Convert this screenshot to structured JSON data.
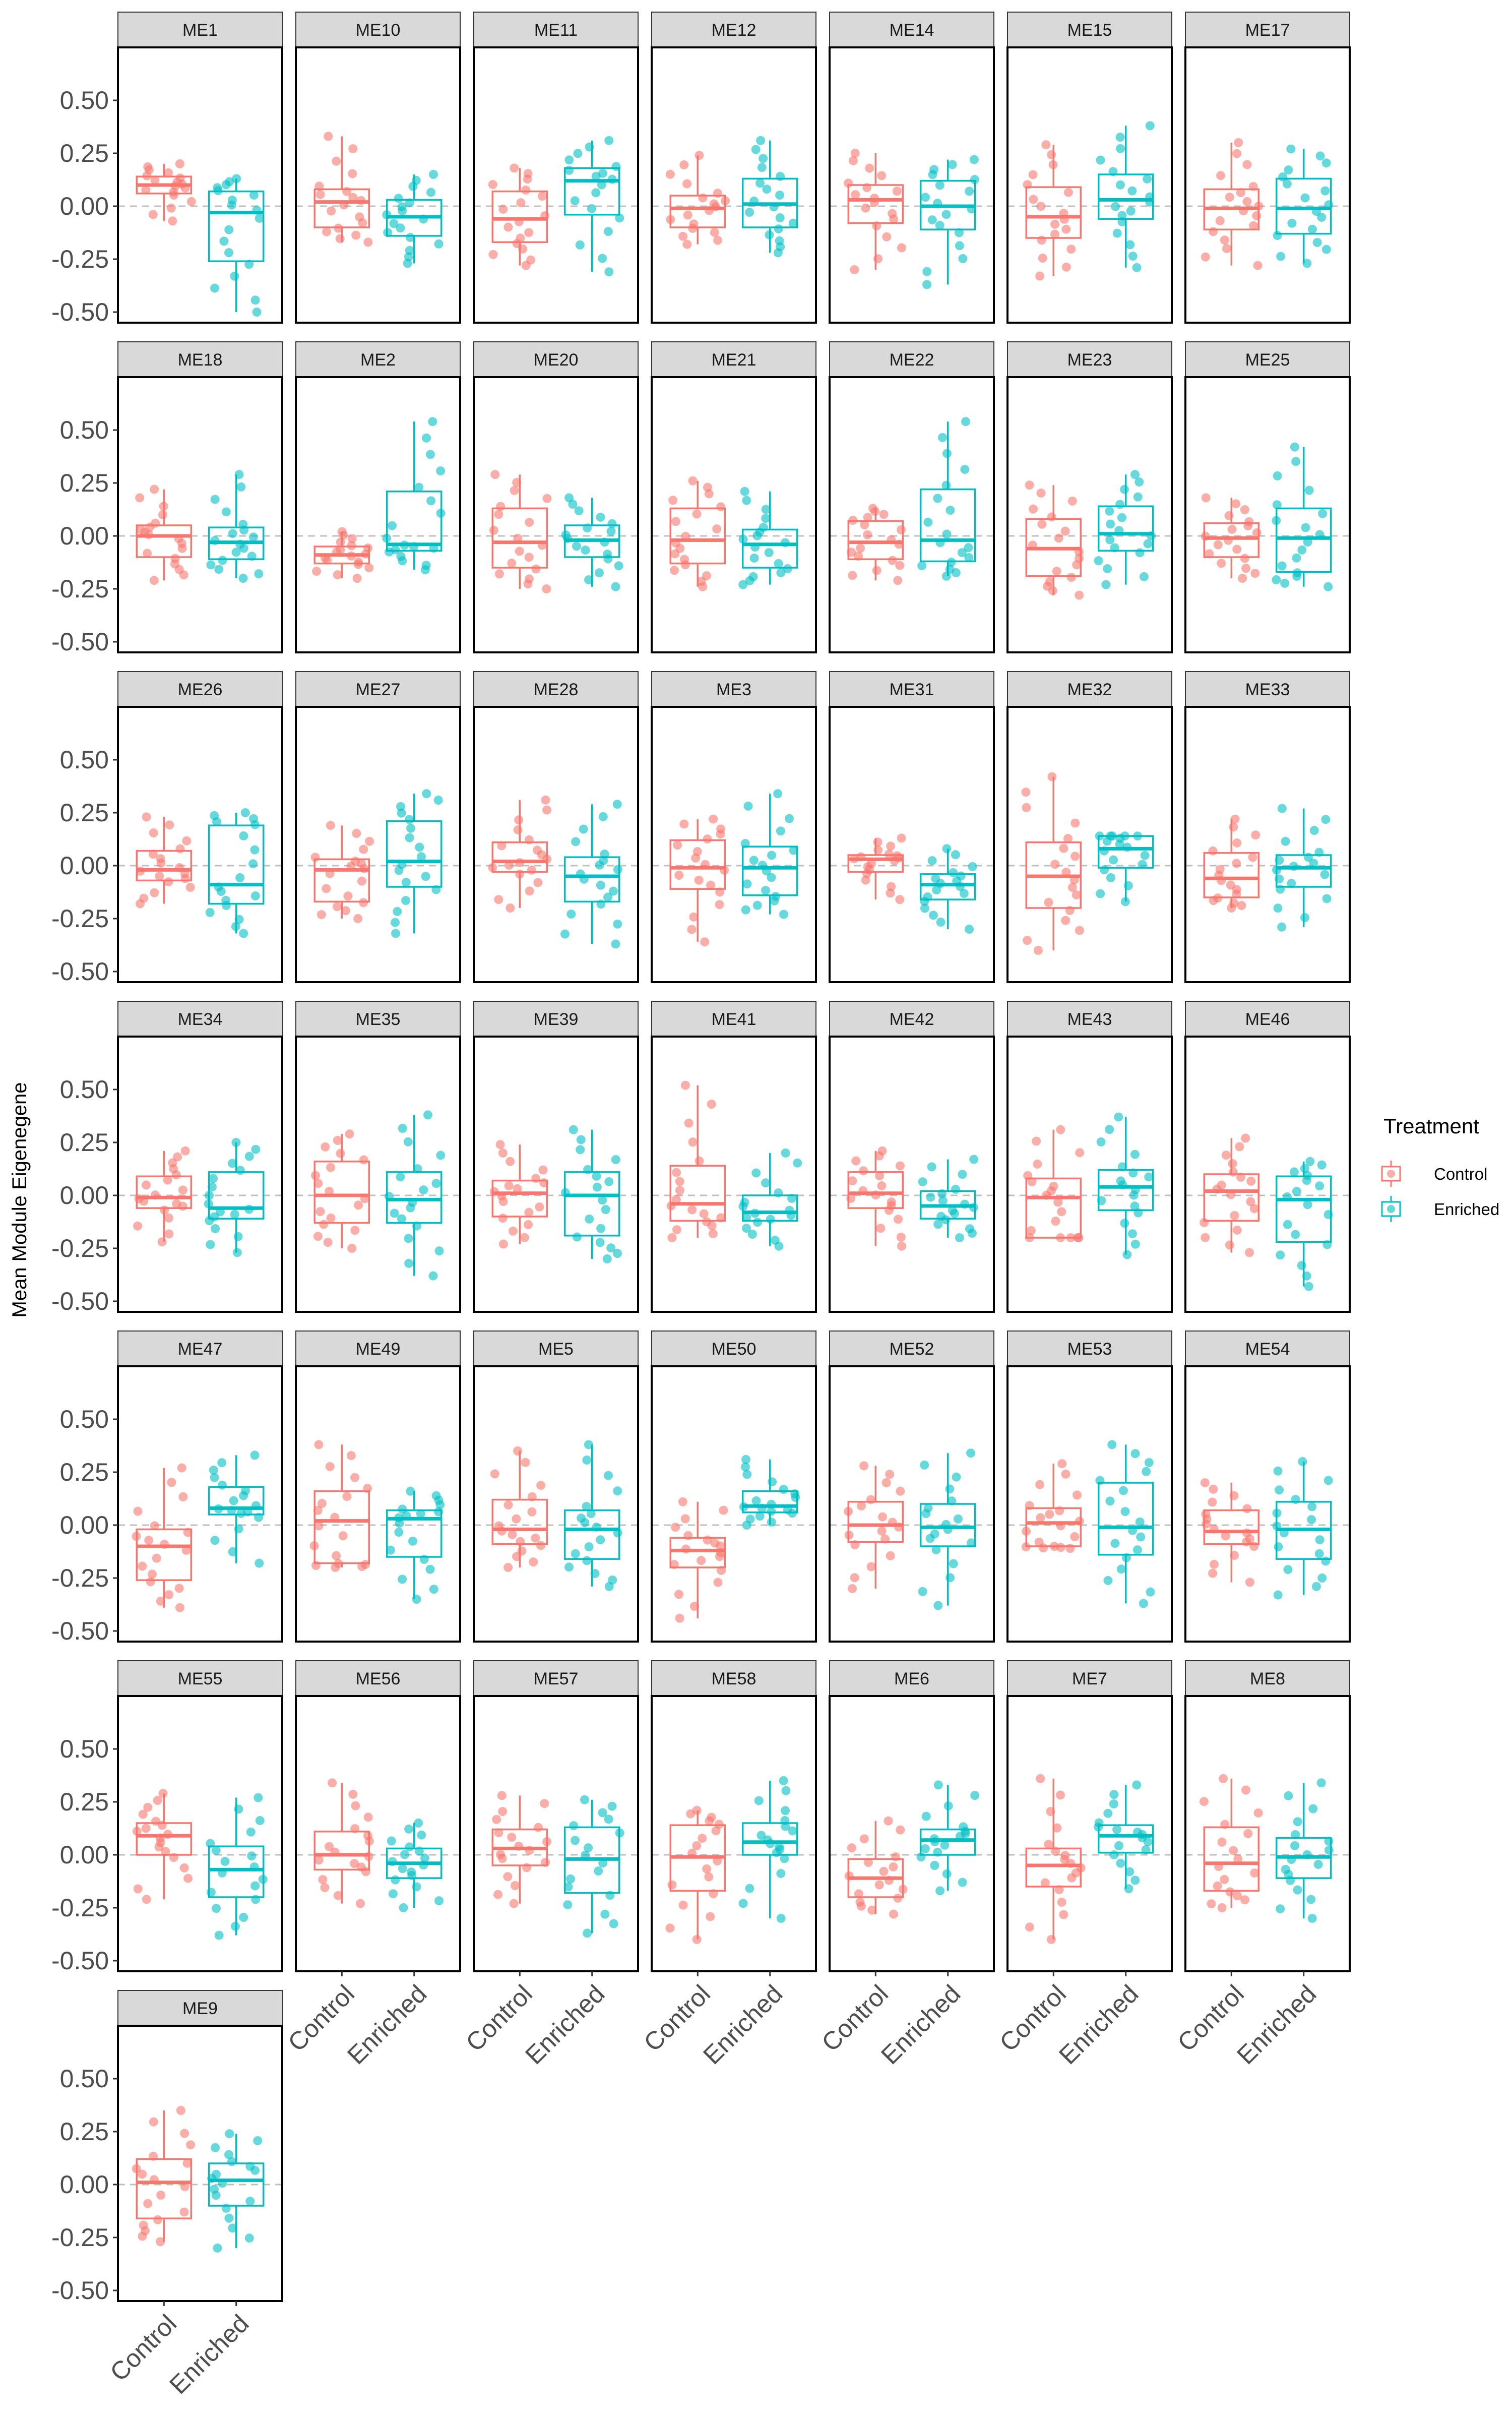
{
  "chart_data": {
    "type": "boxplot",
    "ylabel": "Mean Module Eigenegene",
    "xlabel": "",
    "categories": [
      "Control",
      "Enriched"
    ],
    "ylim": [
      -0.55,
      0.75
    ],
    "y_ticks": [
      "0.50",
      "0.25",
      "0.00",
      "-0.25",
      "-0.50"
    ],
    "y_tick_values": [
      0.5,
      0.25,
      0,
      -0.25,
      -0.5
    ],
    "reference_line": 0,
    "legend": {
      "title": "Treatment",
      "position": "right",
      "entries": [
        {
          "label": "Control",
          "color": "#F8766D"
        },
        {
          "label": "Enriched",
          "color": "#00BFC4"
        }
      ]
    },
    "colors": {
      "Control": "#F8766D",
      "Enriched": "#00BFC4",
      "strip_bg": "#D9D9D9",
      "ref_line": "#BFBFBF"
    },
    "panels": [
      {
        "name": "ME1",
        "control": [
          -0.07,
          0.06,
          0.1,
          0.14,
          0.2
        ],
        "enriched": [
          -0.5,
          -0.26,
          -0.03,
          0.07,
          0.13
        ]
      },
      {
        "name": "ME10",
        "control": [
          -0.17,
          -0.1,
          0.02,
          0.08,
          0.33
        ],
        "enriched": [
          -0.27,
          -0.14,
          -0.05,
          0.03,
          0.15
        ]
      },
      {
        "name": "ME11",
        "control": [
          -0.28,
          -0.17,
          -0.06,
          0.07,
          0.18
        ],
        "enriched": [
          -0.31,
          -0.04,
          0.12,
          0.18,
          0.31
        ]
      },
      {
        "name": "ME12",
        "control": [
          -0.18,
          -0.1,
          -0.01,
          0.05,
          0.24
        ],
        "enriched": [
          -0.22,
          -0.1,
          0.01,
          0.13,
          0.31
        ]
      },
      {
        "name": "ME14",
        "control": [
          -0.3,
          -0.08,
          0.03,
          0.1,
          0.25
        ],
        "enriched": [
          -0.37,
          -0.11,
          0.0,
          0.12,
          0.22
        ]
      },
      {
        "name": "ME15",
        "control": [
          -0.33,
          -0.15,
          -0.05,
          0.09,
          0.29
        ],
        "enriched": [
          -0.29,
          -0.06,
          0.03,
          0.15,
          0.38
        ]
      },
      {
        "name": "ME17",
        "control": [
          -0.28,
          -0.11,
          -0.01,
          0.08,
          0.3
        ],
        "enriched": [
          -0.27,
          -0.13,
          -0.01,
          0.13,
          0.27
        ]
      },
      {
        "name": "ME18",
        "control": [
          -0.21,
          -0.1,
          0.0,
          0.05,
          0.22
        ],
        "enriched": [
          -0.2,
          -0.11,
          -0.03,
          0.04,
          0.29
        ]
      },
      {
        "name": "ME2",
        "control": [
          -0.2,
          -0.13,
          -0.09,
          -0.05,
          0.02
        ],
        "enriched": [
          -0.16,
          -0.07,
          -0.04,
          0.21,
          0.54
        ]
      },
      {
        "name": "ME20",
        "control": [
          -0.25,
          -0.15,
          -0.03,
          0.13,
          0.29
        ],
        "enriched": [
          -0.24,
          -0.1,
          -0.02,
          0.05,
          0.18
        ]
      },
      {
        "name": "ME21",
        "control": [
          -0.24,
          -0.13,
          -0.02,
          0.13,
          0.26
        ],
        "enriched": [
          -0.23,
          -0.15,
          -0.04,
          0.03,
          0.21
        ]
      },
      {
        "name": "ME22",
        "control": [
          -0.21,
          -0.11,
          -0.03,
          0.07,
          0.13
        ],
        "enriched": [
          -0.19,
          -0.12,
          -0.02,
          0.22,
          0.54
        ]
      },
      {
        "name": "ME23",
        "control": [
          -0.28,
          -0.19,
          -0.06,
          0.08,
          0.24
        ],
        "enriched": [
          -0.23,
          -0.07,
          0.01,
          0.14,
          0.29
        ]
      },
      {
        "name": "ME25",
        "control": [
          -0.2,
          -0.1,
          -0.01,
          0.06,
          0.18
        ],
        "enriched": [
          -0.24,
          -0.17,
          -0.01,
          0.13,
          0.42
        ]
      },
      {
        "name": "ME26",
        "control": [
          -0.18,
          -0.07,
          -0.02,
          0.07,
          0.23
        ],
        "enriched": [
          -0.32,
          -0.18,
          -0.09,
          0.19,
          0.25
        ]
      },
      {
        "name": "ME27",
        "control": [
          -0.25,
          -0.17,
          -0.02,
          0.03,
          0.19
        ],
        "enriched": [
          -0.32,
          -0.1,
          0.02,
          0.21,
          0.34
        ]
      },
      {
        "name": "ME28",
        "control": [
          -0.2,
          -0.03,
          0.02,
          0.11,
          0.31
        ],
        "enriched": [
          -0.37,
          -0.17,
          -0.05,
          0.04,
          0.29
        ]
      },
      {
        "name": "ME3",
        "control": [
          -0.36,
          -0.11,
          -0.01,
          0.12,
          0.22
        ],
        "enriched": [
          -0.23,
          -0.14,
          -0.01,
          0.09,
          0.34
        ]
      },
      {
        "name": "ME31",
        "control": [
          -0.16,
          -0.03,
          0.03,
          0.05,
          0.13
        ],
        "enriched": [
          -0.3,
          -0.16,
          -0.09,
          -0.04,
          0.08
        ]
      },
      {
        "name": "ME32",
        "control": [
          -0.4,
          -0.2,
          -0.05,
          0.11,
          0.42
        ],
        "enriched": [
          -0.17,
          -0.01,
          0.08,
          0.14,
          0.14
        ]
      },
      {
        "name": "ME33",
        "control": [
          -0.2,
          -0.15,
          -0.06,
          0.06,
          0.22
        ],
        "enriched": [
          -0.29,
          -0.1,
          -0.01,
          0.05,
          0.27
        ]
      },
      {
        "name": "ME34",
        "control": [
          -0.22,
          -0.06,
          -0.01,
          0.09,
          0.21
        ],
        "enriched": [
          -0.27,
          -0.11,
          -0.06,
          0.11,
          0.25
        ]
      },
      {
        "name": "ME35",
        "control": [
          -0.25,
          -0.13,
          0.0,
          0.16,
          0.29
        ],
        "enriched": [
          -0.38,
          -0.13,
          -0.02,
          0.11,
          0.38
        ]
      },
      {
        "name": "ME39",
        "control": [
          -0.23,
          -0.1,
          0.01,
          0.07,
          0.24
        ],
        "enriched": [
          -0.3,
          -0.19,
          0.0,
          0.11,
          0.31
        ]
      },
      {
        "name": "ME41",
        "control": [
          -0.2,
          -0.12,
          -0.04,
          0.14,
          0.52
        ],
        "enriched": [
          -0.24,
          -0.12,
          -0.08,
          0.0,
          0.2
        ]
      },
      {
        "name": "ME42",
        "control": [
          -0.24,
          -0.06,
          0.01,
          0.11,
          0.21
        ],
        "enriched": [
          -0.2,
          -0.11,
          -0.05,
          0.02,
          0.17
        ]
      },
      {
        "name": "ME43",
        "control": [
          -0.2,
          -0.2,
          -0.01,
          0.08,
          0.31
        ],
        "enriched": [
          -0.28,
          -0.07,
          0.04,
          0.12,
          0.37
        ]
      },
      {
        "name": "ME46",
        "control": [
          -0.27,
          -0.12,
          0.02,
          0.1,
          0.27
        ],
        "enriched": [
          -0.43,
          -0.22,
          -0.02,
          0.09,
          0.16
        ]
      },
      {
        "name": "ME47",
        "control": [
          -0.39,
          -0.26,
          -0.1,
          -0.02,
          0.27
        ],
        "enriched": [
          -0.18,
          0.05,
          0.08,
          0.18,
          0.33
        ]
      },
      {
        "name": "ME49",
        "control": [
          -0.2,
          -0.18,
          0.02,
          0.16,
          0.38
        ],
        "enriched": [
          -0.35,
          -0.15,
          0.03,
          0.07,
          0.16
        ]
      },
      {
        "name": "ME5",
        "control": [
          -0.2,
          -0.09,
          -0.02,
          0.12,
          0.35
        ],
        "enriched": [
          -0.29,
          -0.16,
          -0.02,
          0.07,
          0.38
        ]
      },
      {
        "name": "ME50",
        "control": [
          -0.44,
          -0.2,
          -0.12,
          -0.06,
          0.11
        ],
        "enriched": [
          0.0,
          0.06,
          0.09,
          0.16,
          0.31
        ]
      },
      {
        "name": "ME52",
        "control": [
          -0.3,
          -0.08,
          0.0,
          0.11,
          0.28
        ],
        "enriched": [
          -0.38,
          -0.1,
          -0.01,
          0.1,
          0.34
        ]
      },
      {
        "name": "ME53",
        "control": [
          -0.11,
          -0.1,
          0.01,
          0.08,
          0.29
        ],
        "enriched": [
          -0.37,
          -0.14,
          -0.01,
          0.2,
          0.38
        ]
      },
      {
        "name": "ME54",
        "control": [
          -0.27,
          -0.09,
          -0.03,
          0.07,
          0.2
        ],
        "enriched": [
          -0.33,
          -0.16,
          -0.02,
          0.11,
          0.3
        ]
      },
      {
        "name": "ME55",
        "control": [
          -0.21,
          0.0,
          0.09,
          0.15,
          0.29
        ],
        "enriched": [
          -0.38,
          -0.2,
          -0.07,
          0.04,
          0.27
        ]
      },
      {
        "name": "ME56",
        "control": [
          -0.23,
          -0.07,
          0.0,
          0.11,
          0.34
        ],
        "enriched": [
          -0.25,
          -0.11,
          -0.04,
          0.03,
          0.15
        ]
      },
      {
        "name": "ME57",
        "control": [
          -0.23,
          -0.05,
          0.03,
          0.12,
          0.28
        ],
        "enriched": [
          -0.37,
          -0.18,
          -0.02,
          0.13,
          0.26
        ]
      },
      {
        "name": "ME58",
        "control": [
          -0.4,
          -0.17,
          -0.01,
          0.14,
          0.21
        ],
        "enriched": [
          -0.3,
          0.0,
          0.06,
          0.15,
          0.35
        ]
      },
      {
        "name": "ME6",
        "control": [
          -0.28,
          -0.2,
          -0.11,
          -0.02,
          0.16
        ],
        "enriched": [
          -0.17,
          0.0,
          0.07,
          0.12,
          0.33
        ]
      },
      {
        "name": "ME7",
        "control": [
          -0.4,
          -0.15,
          -0.05,
          0.03,
          0.36
        ],
        "enriched": [
          -0.16,
          0.01,
          0.09,
          0.14,
          0.33
        ]
      },
      {
        "name": "ME8",
        "control": [
          -0.25,
          -0.17,
          -0.04,
          0.13,
          0.36
        ],
        "enriched": [
          -0.3,
          -0.11,
          -0.01,
          0.08,
          0.34
        ]
      },
      {
        "name": "ME9",
        "control": [
          -0.27,
          -0.16,
          0.01,
          0.12,
          0.35
        ],
        "enriched": [
          -0.3,
          -0.1,
          0.02,
          0.1,
          0.24
        ]
      }
    ]
  }
}
